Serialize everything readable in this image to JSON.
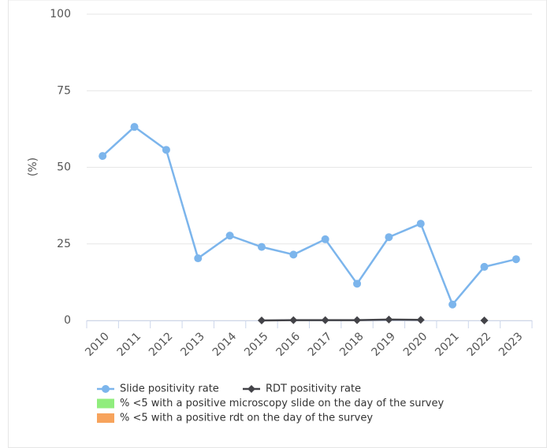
{
  "chart_data": {
    "type": "line",
    "y_label": "(%)",
    "categories": [
      "2010",
      "2011",
      "2012",
      "2013",
      "2014",
      "2015",
      "2016",
      "2017",
      "2018",
      "2019",
      "2020",
      "2021",
      "2022",
      "2023"
    ],
    "ylim": [
      0,
      100
    ],
    "yticks": [
      0,
      25,
      50,
      75,
      100
    ],
    "grid": true,
    "series": [
      {
        "name": "Slide positivity rate",
        "color": "#7cb5ec",
        "marker": "circle",
        "values": [
          53.7,
          63.2,
          55.7,
          20.3,
          27.7,
          24,
          21.5,
          26.5,
          12,
          27.2,
          31.6,
          5.2,
          17.5,
          20
        ]
      },
      {
        "name": "RDT positivity rate",
        "color": "#434348",
        "marker": "diamond",
        "values": [
          null,
          null,
          null,
          null,
          null,
          0,
          0.1,
          0.1,
          0.1,
          0.3,
          0.2,
          null,
          0,
          null
        ]
      },
      {
        "name": "% <5 with a positive microscopy slide on the day of the survey",
        "color": "#90ed7d",
        "marker": "rect",
        "values": [
          null,
          null,
          null,
          null,
          null,
          null,
          null,
          null,
          null,
          null,
          null,
          null,
          null,
          null
        ]
      },
      {
        "name": "% <5 with a positive rdt on the day of the survey",
        "color": "#f7a35c",
        "marker": "rect",
        "values": [
          null,
          null,
          null,
          null,
          null,
          null,
          null,
          null,
          null,
          null,
          null,
          null,
          null,
          null
        ]
      }
    ]
  }
}
